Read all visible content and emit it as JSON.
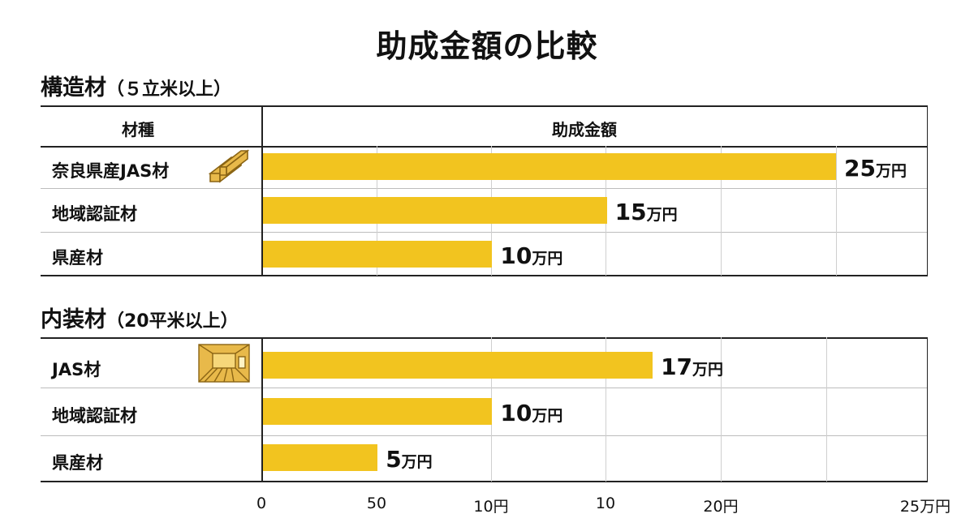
{
  "title": "助成金額の比較",
  "colors": {
    "bar": "#f2c41f",
    "line": "#222222",
    "grid": "#cfcfcf",
    "icon_wood": "#e8b94a",
    "icon_edge": "#8a6414"
  },
  "sections": [
    {
      "title": "構造材",
      "condition": "（５立米以上）",
      "header": {
        "category": "材種",
        "amount": "助成金額"
      },
      "rows": [
        {
          "label": "奈良県産JAS材",
          "value": 25,
          "num": "25",
          "unit": "万円",
          "icon": "lumber-stack-icon"
        },
        {
          "label": "地域認証材",
          "value": 15,
          "num": "15",
          "unit": "万円"
        },
        {
          "label": "県産材",
          "value": 10,
          "num": "10",
          "unit": "万円"
        }
      ]
    },
    {
      "title": "内装材",
      "condition": "（20平米以上）",
      "rows": [
        {
          "label": "JAS材",
          "value": 17,
          "num": "17",
          "unit": "万円",
          "icon": "wood-room-icon"
        },
        {
          "label": "地域認証材",
          "value": 10,
          "num": "10",
          "unit": "万円"
        },
        {
          "label": "県産材",
          "value": 5,
          "num": "5",
          "unit": "万円"
        }
      ]
    }
  ],
  "x_ticks": [
    "0",
    "50",
    "10円",
    "10",
    "20円",
    "25万円"
  ],
  "chart_data": [
    {
      "type": "bar",
      "title": "構造材（５立米以上）",
      "categories": [
        "奈良県産JAS材",
        "地域認証材",
        "県産材"
      ],
      "values": [
        25,
        15,
        10
      ],
      "unit": "万円",
      "xlim": [
        0,
        25
      ],
      "x_tick_labels": [
        "0",
        "50",
        "10円",
        "10",
        "20円",
        "25万円"
      ],
      "grid": true,
      "orientation": "horizontal"
    },
    {
      "type": "bar",
      "title": "内装材（20平米以上）",
      "categories": [
        "JAS材",
        "地域認証材",
        "県産材"
      ],
      "values": [
        17,
        10,
        5
      ],
      "unit": "万円",
      "xlim": [
        0,
        25
      ],
      "x_tick_labels": [
        "0",
        "50",
        "10円",
        "10",
        "20円",
        "25万円"
      ],
      "grid": true,
      "orientation": "horizontal"
    }
  ]
}
